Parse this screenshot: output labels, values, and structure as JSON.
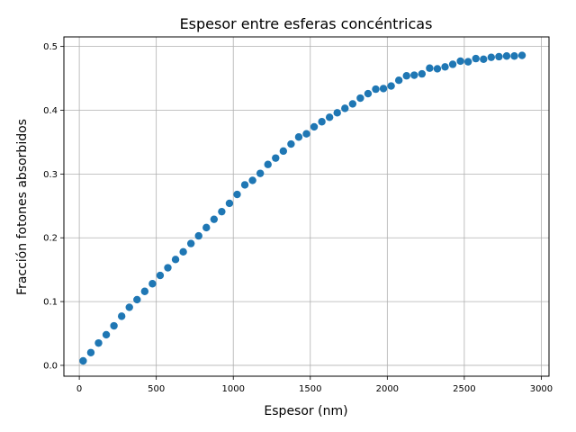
{
  "chart_data": {
    "type": "scatter",
    "title": "Espesor entre esferas concéntricas",
    "xlabel": "Espesor (nm)",
    "ylabel": "Fracción fotones absorbidos",
    "xlim": [
      -100,
      3050
    ],
    "ylim": [
      -0.017,
      0.515
    ],
    "xticks": [
      0,
      500,
      1000,
      1500,
      2000,
      2500,
      3000
    ],
    "yticks": [
      0.0,
      0.1,
      0.2,
      0.3,
      0.4,
      0.5
    ],
    "xtick_labels": [
      "0",
      "500",
      "1000",
      "1500",
      "2000",
      "2500",
      "3000"
    ],
    "ytick_labels": [
      "0.0",
      "0.1",
      "0.2",
      "0.3",
      "0.4",
      "0.5"
    ],
    "grid": true,
    "marker_color": "#1f77b4",
    "series": [
      {
        "x": [
          25,
          75,
          125,
          175,
          225,
          275,
          325,
          375,
          425,
          475,
          525,
          575,
          625,
          675,
          725,
          775,
          825,
          875,
          925,
          975,
          1025,
          1075,
          1125,
          1175,
          1225,
          1275,
          1325,
          1375,
          1425,
          1475,
          1525,
          1575,
          1625,
          1675,
          1725,
          1775,
          1825,
          1875,
          1925,
          1975,
          2025,
          2075,
          2125,
          2175,
          2225,
          2275,
          2325,
          2375,
          2425,
          2475,
          2525,
          2575,
          2625,
          2675,
          2725,
          2775,
          2825,
          2875
        ],
        "y": [
          0.007,
          0.02,
          0.035,
          0.048,
          0.062,
          0.077,
          0.091,
          0.103,
          0.116,
          0.128,
          0.141,
          0.153,
          0.166,
          0.178,
          0.191,
          0.203,
          0.216,
          0.229,
          0.241,
          0.254,
          0.268,
          0.283,
          0.29,
          0.301,
          0.315,
          0.325,
          0.336,
          0.347,
          0.358,
          0.363,
          0.374,
          0.382,
          0.389,
          0.396,
          0.403,
          0.41,
          0.419,
          0.426,
          0.433,
          0.434,
          0.438,
          0.447,
          0.454,
          0.455,
          0.457,
          0.466,
          0.465,
          0.468,
          0.472,
          0.477,
          0.476,
          0.481,
          0.48,
          0.483,
          0.484,
          0.485,
          0.485,
          0.486
        ]
      }
    ]
  }
}
